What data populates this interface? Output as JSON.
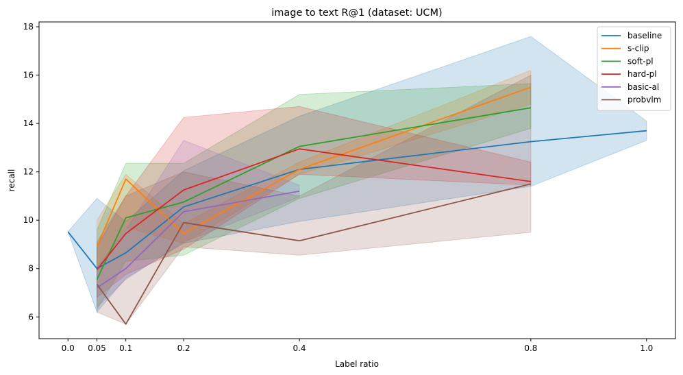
{
  "chart_data": {
    "type": "line",
    "title": "image to text R@1 (dataset: UCM)",
    "xlabel": "Label ratio",
    "ylabel": "recall",
    "xlim": [
      -0.05,
      1.05
    ],
    "ylim": [
      5.1,
      18.2
    ],
    "xticks": [
      0.0,
      0.05,
      0.1,
      0.2,
      0.4,
      0.8,
      1.0
    ],
    "xtick_labels": [
      "0.0",
      "0.05",
      "0.1",
      "0.2",
      "0.4",
      "0.8",
      "1.0"
    ],
    "yticks": [
      6,
      8,
      10,
      12,
      14,
      16,
      18
    ],
    "ytick_labels": [
      "6",
      "8",
      "10",
      "12",
      "14",
      "16",
      "18"
    ],
    "grid": false,
    "legend_position": "top-right",
    "series": [
      {
        "name": "baseline",
        "color": "#1f77b4",
        "x": [
          0.0,
          0.05,
          0.1,
          0.2,
          0.4,
          0.8,
          1.0
        ],
        "y": [
          9.52,
          8.0,
          8.65,
          10.55,
          12.1,
          13.25,
          13.7
        ],
        "lower": [
          9.52,
          6.2,
          7.6,
          9.05,
          9.95,
          11.4,
          13.3
        ],
        "upper": [
          9.52,
          10.9,
          9.95,
          12.05,
          14.3,
          17.6,
          14.1
        ]
      },
      {
        "name": "s-clip",
        "color": "#ff7f0e",
        "x": [
          0.05,
          0.1,
          0.2,
          0.4,
          0.8
        ],
        "y": [
          8.9,
          11.7,
          9.45,
          12.1,
          15.5
        ],
        "lower": [
          7.9,
          9.7,
          9.05,
          11.9,
          14.8
        ],
        "upper": [
          10.0,
          11.9,
          9.85,
          12.4,
          16.2
        ]
      },
      {
        "name": "soft-pl",
        "color": "#2ca02c",
        "x": [
          0.05,
          0.1,
          0.2,
          0.4,
          0.8
        ],
        "y": [
          7.55,
          10.1,
          10.75,
          13.05,
          14.65
        ],
        "lower": [
          6.3,
          8.3,
          8.55,
          10.9,
          13.8
        ],
        "upper": [
          9.6,
          12.35,
          12.35,
          15.2,
          15.65
        ]
      },
      {
        "name": "hard-pl",
        "color": "#d62728",
        "x": [
          0.05,
          0.1,
          0.2,
          0.4,
          0.8
        ],
        "y": [
          7.95,
          9.45,
          11.25,
          12.95,
          11.6
        ],
        "lower": [
          6.8,
          7.75,
          8.8,
          11.9,
          11.45
        ],
        "upper": [
          8.9,
          11.0,
          14.25,
          14.7,
          12.4
        ]
      },
      {
        "name": "basic-al",
        "color": "#9467bd",
        "x": [
          0.05,
          0.1,
          0.2,
          0.4
        ],
        "y": [
          7.2,
          8.0,
          10.35,
          11.2
        ],
        "lower": [
          6.4,
          7.55,
          9.1,
          10.95
        ],
        "upper": [
          8.05,
          9.6,
          13.3,
          11.45
        ]
      },
      {
        "name": "probvlm",
        "color": "#8c564b",
        "x": [
          0.05,
          0.1,
          0.2,
          0.4,
          0.8
        ],
        "y": [
          7.35,
          5.7,
          9.9,
          9.15,
          11.5
        ],
        "lower": [
          6.2,
          5.7,
          8.9,
          8.55,
          9.5
        ],
        "upper": [
          9.1,
          11.0,
          12.0,
          11.0,
          16.0
        ]
      }
    ]
  }
}
